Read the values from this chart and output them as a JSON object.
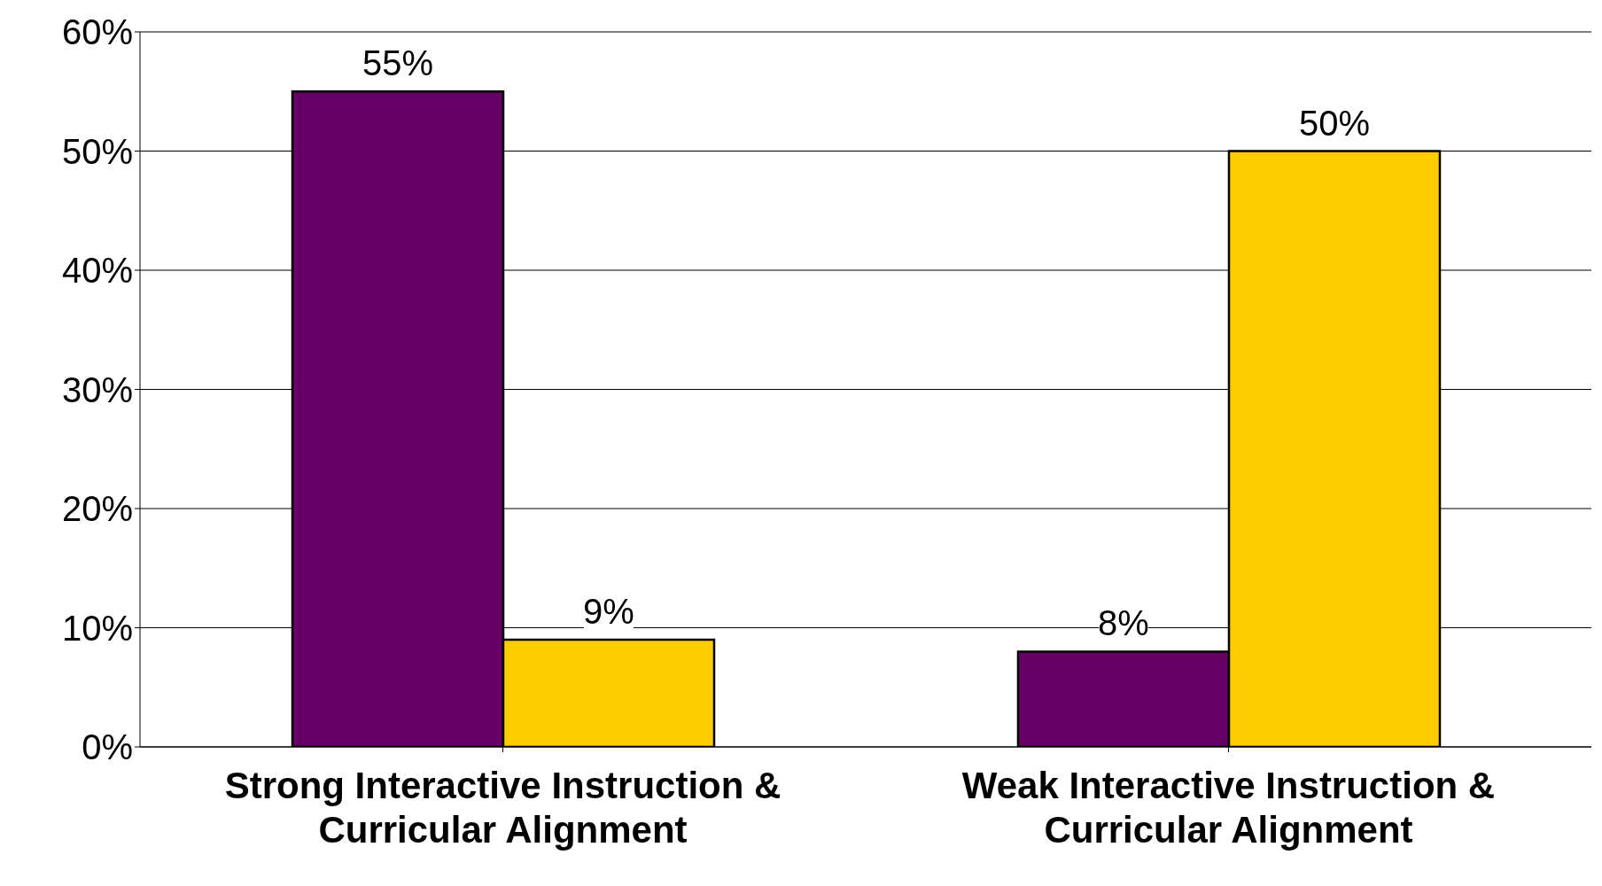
{
  "chart_data": {
    "type": "bar",
    "categories": [
      "Strong Interactive Instruction & Curricular Alignment",
      "Weak Interactive Instruction & Curricular Alignment"
    ],
    "series": [
      {
        "color": "#660066",
        "values": [
          55,
          8
        ],
        "value_labels": [
          "55%",
          "8%"
        ]
      },
      {
        "color": "#ffcc00",
        "values": [
          9,
          50
        ],
        "value_labels": [
          "9%",
          "50%"
        ]
      }
    ],
    "ylim": [
      0,
      60
    ],
    "yticks": [
      {
        "value": 0,
        "label": "0%"
      },
      {
        "value": 10,
        "label": "10%"
      },
      {
        "value": 20,
        "label": "20%"
      },
      {
        "value": 30,
        "label": "30%"
      },
      {
        "value": 40,
        "label": "40%"
      },
      {
        "value": 50,
        "label": "50%"
      },
      {
        "value": 60,
        "label": "60%"
      }
    ],
    "grid": "y"
  }
}
